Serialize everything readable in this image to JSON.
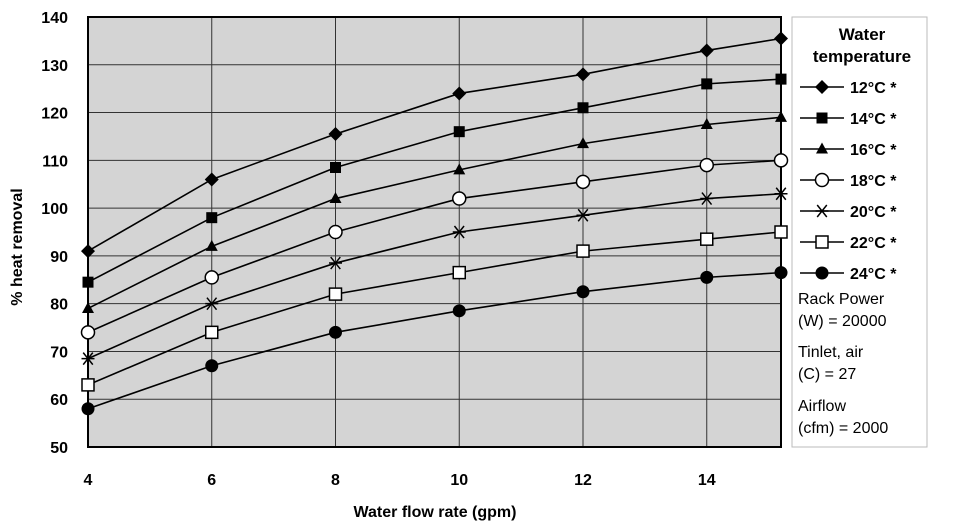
{
  "chart_data": {
    "type": "line",
    "xlabel": "Water flow rate (gpm)",
    "ylabel": "% heat removal",
    "xlim": [
      4,
      15.2
    ],
    "ylim": [
      50,
      140
    ],
    "x_ticks": [
      "4",
      "6",
      "8",
      "10",
      "12",
      "14"
    ],
    "y_ticks": [
      "50",
      "60",
      "70",
      "80",
      "90",
      "100",
      "110",
      "120",
      "130",
      "140"
    ],
    "grid": true,
    "background": "#d4d4d4",
    "legend_title": "Water temperature",
    "legend_position": "right",
    "x": [
      4,
      6,
      8,
      10,
      12,
      14,
      15.2
    ],
    "series": [
      {
        "name": "12°C *",
        "marker": "diamond-filled",
        "values": [
          91,
          106,
          115.5,
          124,
          128,
          133,
          135.5
        ]
      },
      {
        "name": "14°C *",
        "marker": "square-filled",
        "values": [
          84.5,
          98,
          108.5,
          116,
          121,
          126,
          127
        ]
      },
      {
        "name": "16°C *",
        "marker": "triangle-filled",
        "values": [
          79,
          92,
          102,
          108,
          113.5,
          117.5,
          119
        ]
      },
      {
        "name": "18°C *",
        "marker": "circle-open",
        "values": [
          74,
          85.5,
          95,
          102,
          105.5,
          109,
          110
        ]
      },
      {
        "name": "20°C *",
        "marker": "star",
        "values": [
          68.5,
          80,
          88.5,
          95,
          98.5,
          102,
          103
        ]
      },
      {
        "name": "22°C *",
        "marker": "square-open",
        "values": [
          63,
          74,
          82,
          86.5,
          91,
          93.5,
          95
        ]
      },
      {
        "name": "24°C *",
        "marker": "circle-filled",
        "values": [
          58,
          67,
          74,
          78.5,
          82.5,
          85.5,
          86.5
        ]
      }
    ],
    "notes": [
      [
        "Rack Power",
        "(W) = 20000"
      ],
      [
        "Tinlet, air",
        "(C) = 27"
      ],
      [
        "Airflow",
        "(cfm) = 2000"
      ]
    ]
  }
}
